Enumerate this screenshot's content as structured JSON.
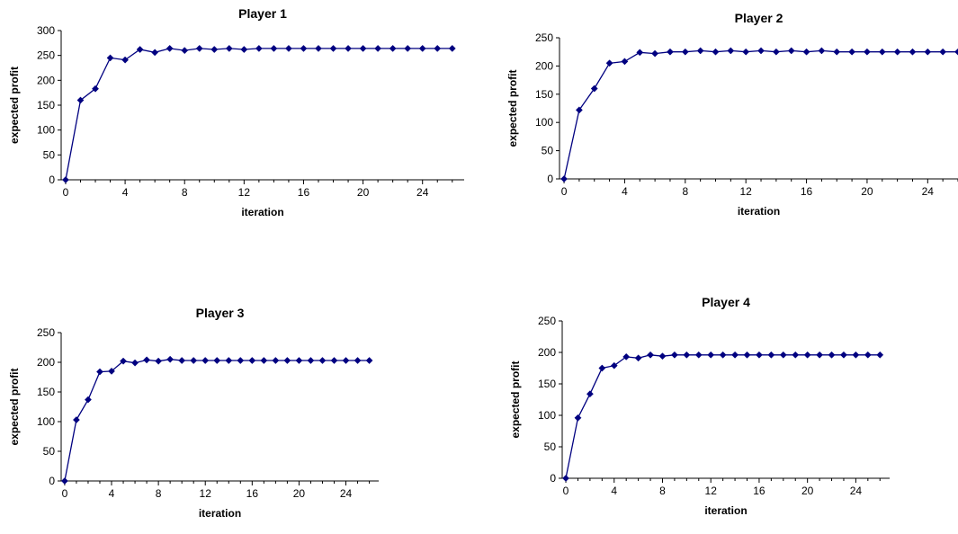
{
  "colors": {
    "series": "#000080",
    "axis": "#000000"
  },
  "chart_data": [
    {
      "type": "line",
      "title": "Player 1",
      "xlabel": "iteration",
      "ylabel": "expected profit",
      "xlim": [
        -0.3,
        26.8
      ],
      "ylim": [
        0,
        300
      ],
      "xticks": [
        0,
        4,
        8,
        12,
        16,
        20,
        24
      ],
      "yticks": [
        0,
        50,
        100,
        150,
        200,
        250,
        300
      ],
      "grid": false,
      "legend": "none",
      "x": [
        0,
        1,
        2,
        3,
        4,
        5,
        6,
        7,
        8,
        9,
        10,
        11,
        12,
        13,
        14,
        15,
        16,
        17,
        18,
        19,
        20,
        21,
        22,
        23,
        24,
        25,
        26
      ],
      "values": [
        0,
        160,
        183,
        245,
        241,
        262,
        256,
        264,
        260,
        264,
        262,
        264,
        262,
        264,
        264,
        264,
        264,
        264,
        264,
        264,
        264,
        264,
        264,
        264,
        264,
        264,
        264
      ]
    },
    {
      "type": "line",
      "title": "Player 2",
      "xlabel": "iteration",
      "ylabel": "expected profit",
      "xlim": [
        -0.3,
        26
      ],
      "ylim": [
        0,
        250
      ],
      "xticks": [
        0,
        4,
        8,
        12,
        16,
        20,
        24
      ],
      "yticks": [
        0,
        50,
        100,
        150,
        200,
        250
      ],
      "grid": false,
      "legend": "none",
      "x": [
        0,
        1,
        2,
        3,
        4,
        5,
        6,
        7,
        8,
        9,
        10,
        11,
        12,
        13,
        14,
        15,
        16,
        17,
        18,
        19,
        20,
        21,
        22,
        23,
        24,
        25,
        26
      ],
      "values": [
        0,
        122,
        160,
        205,
        208,
        224,
        222,
        225,
        225,
        227,
        225,
        227,
        225,
        227,
        225,
        227,
        225,
        227,
        225,
        225,
        225,
        225,
        225,
        225,
        225,
        225,
        225
      ]
    },
    {
      "type": "line",
      "title": "Player 3",
      "xlabel": "iteration",
      "ylabel": "expected profit",
      "xlim": [
        -0.3,
        26.8
      ],
      "ylim": [
        0,
        250
      ],
      "xticks": [
        0,
        4,
        8,
        12,
        16,
        20,
        24
      ],
      "yticks": [
        0,
        50,
        100,
        150,
        200,
        250
      ],
      "grid": false,
      "legend": "none",
      "x": [
        0,
        1,
        2,
        3,
        4,
        5,
        6,
        7,
        8,
        9,
        10,
        11,
        12,
        13,
        14,
        15,
        16,
        17,
        18,
        19,
        20,
        21,
        22,
        23,
        24,
        25,
        26
      ],
      "values": [
        0,
        103,
        137,
        184,
        185,
        202,
        199,
        204,
        202,
        205,
        203,
        203,
        203,
        203,
        203,
        203,
        203,
        203,
        203,
        203,
        203,
        203,
        203,
        203,
        203,
        203,
        203
      ]
    },
    {
      "type": "line",
      "title": "Player 4",
      "xlabel": "iteration",
      "ylabel": "expected profit",
      "xlim": [
        -0.3,
        26.8
      ],
      "ylim": [
        0,
        250
      ],
      "xticks": [
        0,
        4,
        8,
        12,
        16,
        20,
        24
      ],
      "yticks": [
        0,
        50,
        100,
        150,
        200,
        250
      ],
      "grid": false,
      "legend": "none",
      "x": [
        0,
        1,
        2,
        3,
        4,
        5,
        6,
        7,
        8,
        9,
        10,
        11,
        12,
        13,
        14,
        15,
        16,
        17,
        18,
        19,
        20,
        21,
        22,
        23,
        24,
        25,
        26
      ],
      "values": [
        0,
        96,
        134,
        175,
        179,
        193,
        191,
        196,
        194,
        196,
        196,
        196,
        196,
        196,
        196,
        196,
        196,
        196,
        196,
        196,
        196,
        196,
        196,
        196,
        196,
        196,
        196
      ]
    }
  ]
}
